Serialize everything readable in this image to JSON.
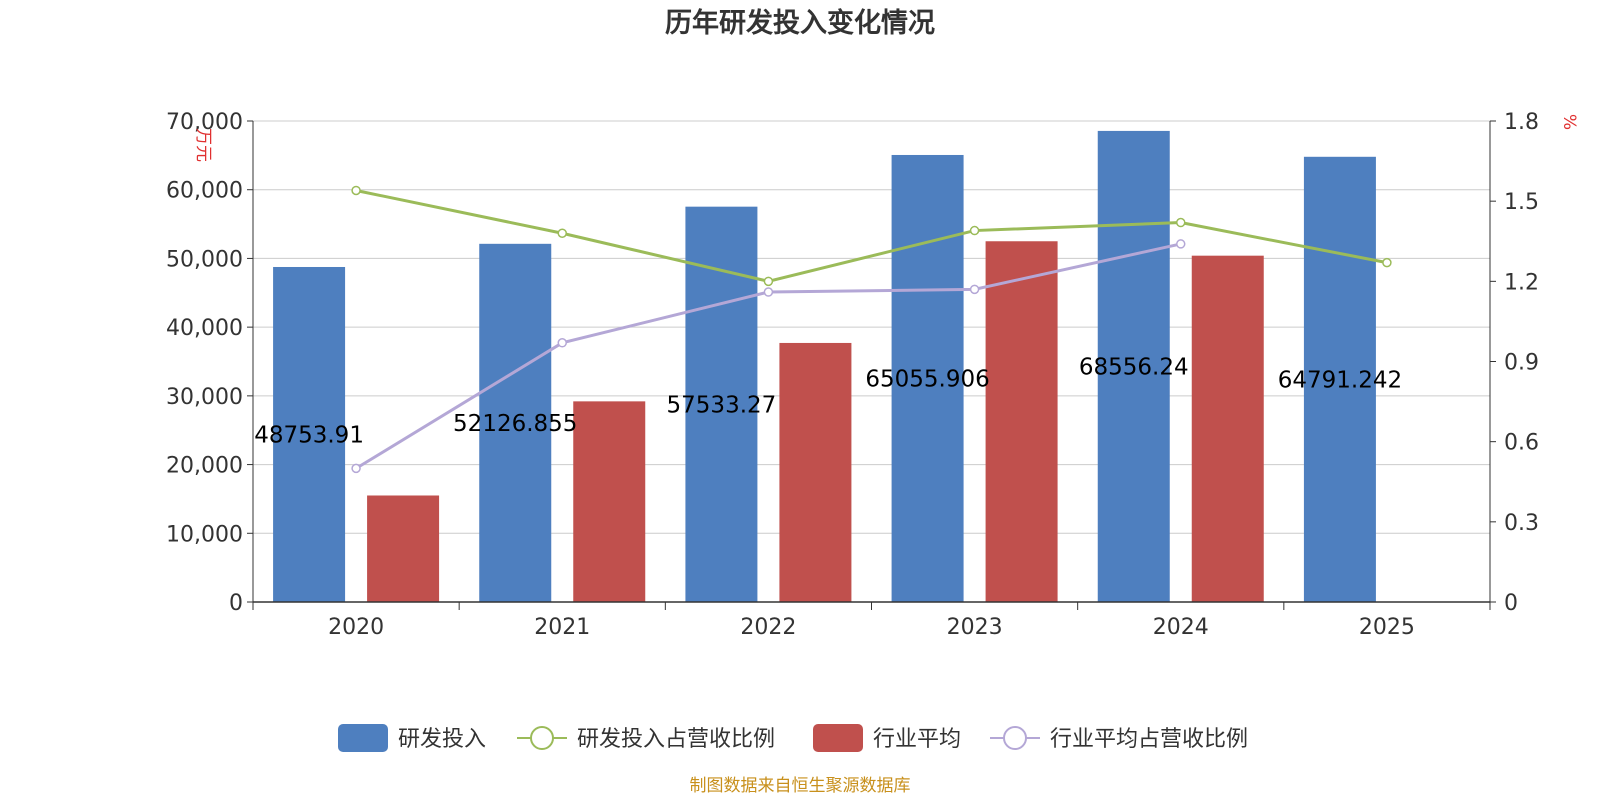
{
  "chart_data": {
    "type": "bar",
    "title": "历年研发投入变化情况",
    "categories": [
      "2020",
      "2021",
      "2022",
      "2023",
      "2024",
      "2025"
    ],
    "y_left": {
      "unit": "万元",
      "range": [
        0,
        70000
      ],
      "ticks": [
        "0",
        "10,000",
        "20,000",
        "30,000",
        "40,000",
        "50,000",
        "60,000",
        "70,000"
      ]
    },
    "y_right": {
      "unit": "%",
      "range": [
        0,
        1.8
      ],
      "ticks": [
        "0",
        "0.3",
        "0.6",
        "0.9",
        "1.2",
        "1.5",
        "1.8"
      ]
    },
    "grid": true,
    "legend_position": "bottom",
    "series": [
      {
        "name": "研发投入",
        "kind": "bar",
        "axis": "left",
        "color": "#4e7fbf",
        "values": [
          48753.91,
          52126.855,
          57533.27,
          65055.906,
          68556.24,
          64791.242
        ],
        "labels": [
          "48753.91",
          "52126.855",
          "57533.27",
          "65055.906",
          "68556.24",
          "64791.242"
        ]
      },
      {
        "name": "研发投入占营收比例",
        "kind": "line",
        "axis": "right",
        "color": "#9bbb59",
        "values": [
          1.54,
          1.38,
          1.2,
          1.39,
          1.42,
          1.27
        ]
      },
      {
        "name": "行业平均",
        "kind": "bar",
        "axis": "left",
        "color": "#c0504d",
        "values": [
          15500,
          29200,
          37700,
          52500,
          50400,
          null
        ]
      },
      {
        "name": "行业平均占营收比例",
        "kind": "line",
        "axis": "right",
        "color": "#b4a7d6",
        "values": [
          0.5,
          0.97,
          1.16,
          1.17,
          1.34,
          null
        ]
      }
    ]
  },
  "source": "制图数据来自恒生聚源数据库"
}
